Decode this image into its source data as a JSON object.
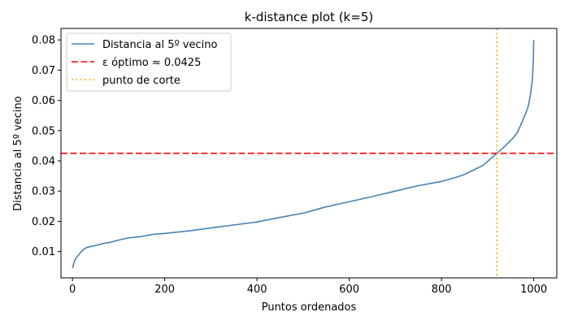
{
  "chart_data": {
    "type": "line",
    "title": "k-distance plot (k=5)",
    "xlabel": "Puntos ordenados",
    "ylabel": "Distancia al 5º vecino",
    "xlim": [
      -25,
      1050
    ],
    "ylim": [
      0.0013,
      0.0838
    ],
    "xticks": [
      0,
      200,
      400,
      600,
      800,
      1000
    ],
    "yticks": [
      0.01,
      0.02,
      0.03,
      0.04,
      0.05,
      0.06,
      0.07,
      0.08
    ],
    "ytick_labels": [
      "0.01",
      "0.02",
      "0.03",
      "0.04",
      "0.05",
      "0.06",
      "0.07",
      "0.08"
    ],
    "grid": false,
    "legend_position": "upper-left",
    "series": [
      {
        "name": "Distancia al 5º vecino",
        "color": "#4682b4",
        "style": "solid",
        "x": [
          0,
          3,
          6,
          10,
          15,
          20,
          25,
          30,
          40,
          50,
          60,
          70,
          80,
          100,
          120,
          150,
          175,
          200,
          250,
          300,
          350,
          400,
          450,
          500,
          550,
          600,
          650,
          700,
          750,
          800,
          830,
          850,
          870,
          890,
          905,
          920,
          935,
          945,
          955,
          965,
          975,
          982,
          988,
          993,
          997,
          999,
          1000
        ],
        "y": [
          0.0045,
          0.0062,
          0.0075,
          0.0083,
          0.0092,
          0.0102,
          0.0108,
          0.0113,
          0.0117,
          0.012,
          0.0124,
          0.0128,
          0.013,
          0.0138,
          0.0145,
          0.015,
          0.0157,
          0.016,
          0.0168,
          0.0178,
          0.0188,
          0.0198,
          0.0213,
          0.0227,
          0.0248,
          0.0265,
          0.0282,
          0.03,
          0.0318,
          0.0332,
          0.0345,
          0.0355,
          0.037,
          0.0385,
          0.0405,
          0.0425,
          0.0445,
          0.046,
          0.0475,
          0.0495,
          0.053,
          0.0555,
          0.058,
          0.062,
          0.067,
          0.073,
          0.08
        ]
      },
      {
        "name": "ε óptimo ≈ 0.0425",
        "color": "#ff0000",
        "style": "dashed",
        "orientation": "horizontal",
        "value": 0.0425
      },
      {
        "name": "punto de corte",
        "color": "#ffa500",
        "style": "dotted",
        "orientation": "vertical",
        "value": 920
      }
    ]
  }
}
